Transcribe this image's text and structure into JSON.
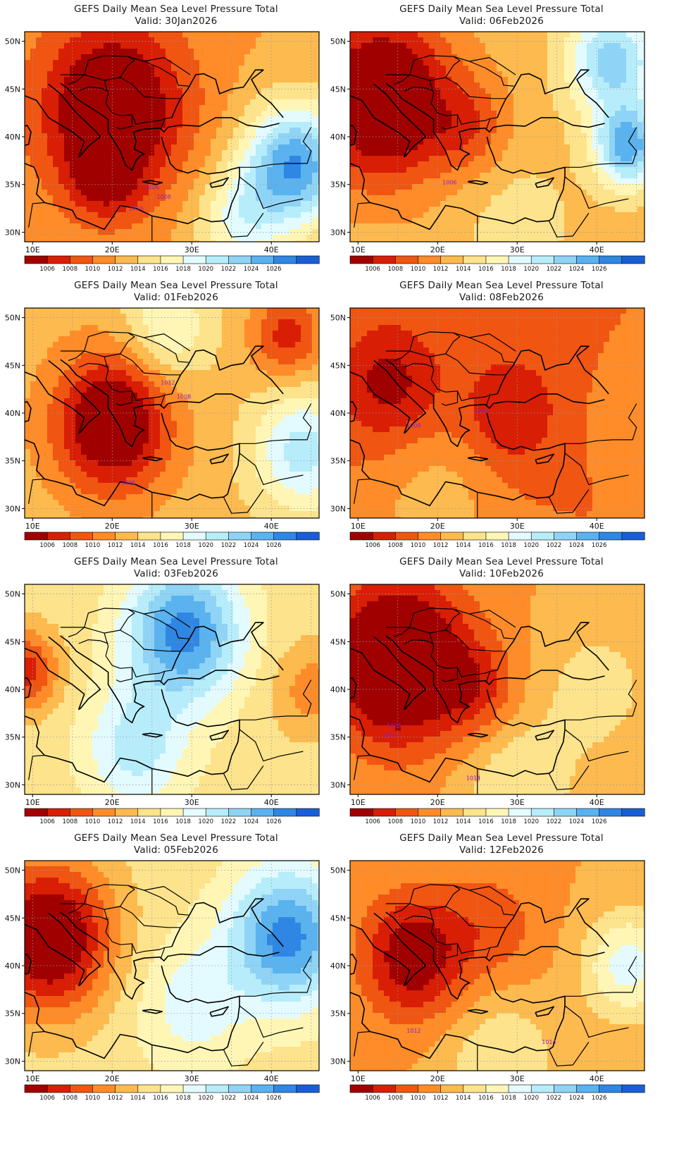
{
  "colors": {
    "levels": [
      "#a00000",
      "#d81e05",
      "#f05512",
      "#ff8c28",
      "#fdba4e",
      "#fde38c",
      "#fff6b6",
      "#e3fbff",
      "#b7edfb",
      "#8fd4f6",
      "#5ab2ef",
      "#2f86e3",
      "#1a5ed6"
    ],
    "contour": "#a22ad7",
    "coast": "#000000"
  },
  "colorbar": {
    "labels": [
      "1006",
      "1008",
      "1010",
      "1012",
      "1014",
      "1016",
      "1018",
      "1020",
      "1022",
      "1024",
      "1026"
    ]
  },
  "axes": {
    "x_ticks": [
      "10E",
      "20E",
      "30E",
      "40E"
    ],
    "x_values": [
      10,
      20,
      30,
      40
    ],
    "y_ticks": [
      "50N",
      "45N",
      "40N",
      "35N",
      "30N"
    ],
    "y_values": [
      50,
      45,
      40,
      35,
      30
    ],
    "lon_range": [
      9,
      46
    ],
    "lat_range": [
      29,
      51
    ]
  },
  "chart_data": [
    {
      "type": "heatmap",
      "title": "GEFS Daily Mean Sea Level Pressure Total",
      "valid": "Valid: 30Jan2026",
      "contour_labels": [
        {
          "text": "1006",
          "lon": 25,
          "lat": 34.5
        },
        {
          "text": "1008",
          "lon": 26.5,
          "lat": 33.5
        },
        {
          "text": "1010",
          "lon": 23,
          "lat": 32.3
        }
      ],
      "fields": [
        {
          "lon": 20,
          "lat": 43,
          "mb": -10,
          "r": 13
        },
        {
          "lon": 19,
          "lat": 36,
          "mb": -5,
          "r": 6
        },
        {
          "lon": 43,
          "lat": 37,
          "mb": 14,
          "r": 9
        },
        {
          "lon": 36,
          "lat": 31,
          "mb": 6,
          "r": 8
        }
      ],
      "base": 1012
    },
    {
      "type": "heatmap",
      "title": "GEFS Daily Mean Sea Level Pressure Total",
      "valid": "Valid: 06Feb2026",
      "contour_labels": [
        {
          "text": "1006",
          "lon": 21.5,
          "lat": 35
        }
      ],
      "fields": [
        {
          "lon": 13,
          "lat": 44,
          "mb": -12,
          "r": 12
        },
        {
          "lon": 24,
          "lat": 41,
          "mb": -4,
          "r": 7
        },
        {
          "lon": 44,
          "lat": 39,
          "mb": 12,
          "r": 6
        },
        {
          "lon": 42,
          "lat": 48,
          "mb": 10,
          "r": 8
        },
        {
          "lon": 30,
          "lat": 31,
          "mb": 2,
          "r": 10
        }
      ],
      "base": 1013
    },
    {
      "type": "heatmap",
      "title": "GEFS Daily Mean Sea Level Pressure Total",
      "valid": "Valid: 01Feb2026",
      "contour_labels": [
        {
          "text": "1012",
          "lon": 27,
          "lat": 43
        },
        {
          "text": "1008",
          "lon": 29,
          "lat": 41.5
        },
        {
          "text": "1006",
          "lon": 22,
          "lat": 32.5
        }
      ],
      "fields": [
        {
          "lon": 20,
          "lat": 39,
          "mb": -11,
          "r": 10
        },
        {
          "lon": 27,
          "lat": 49,
          "mb": 5,
          "r": 8
        },
        {
          "lon": 44,
          "lat": 36,
          "mb": 8,
          "r": 9
        },
        {
          "lon": 42,
          "lat": 48,
          "mb": -6,
          "r": 6
        }
      ],
      "base": 1013
    },
    {
      "type": "heatmap",
      "title": "GEFS Daily Mean Sea Level Pressure Total",
      "valid": "Valid: 08Feb2026",
      "contour_labels": [
        {
          "text": "1008",
          "lon": 17,
          "lat": 38.5
        },
        {
          "text": "1006",
          "lon": 25.5,
          "lat": 40
        }
      ],
      "fields": [
        {
          "lon": 14,
          "lat": 43,
          "mb": -5,
          "r": 9
        },
        {
          "lon": 29,
          "lat": 40,
          "mb": -4,
          "r": 9
        },
        {
          "lon": 20,
          "lat": 31,
          "mb": 3,
          "r": 12
        },
        {
          "lon": 44,
          "lat": 39,
          "mb": 2,
          "r": 6
        }
      ],
      "base": 1010
    },
    {
      "type": "heatmap",
      "title": "GEFS Daily Mean Sea Level Pressure Total",
      "valid": "Valid: 03Feb2026",
      "contour_labels": [],
      "fields": [
        {
          "lon": 29,
          "lat": 46,
          "mb": 12,
          "r": 10
        },
        {
          "lon": 23,
          "lat": 34,
          "mb": 6,
          "r": 9
        },
        {
          "lon": 9,
          "lat": 42,
          "mb": -8,
          "r": 6
        },
        {
          "lon": 45,
          "lat": 40,
          "mb": -4,
          "r": 7
        }
      ],
      "base": 1015
    },
    {
      "type": "heatmap",
      "title": "GEFS Daily Mean Sea Level Pressure Total",
      "valid": "Valid: 10Feb2026",
      "contour_labels": [
        {
          "text": "1008",
          "lon": 14.5,
          "lat": 36
        },
        {
          "text": "1010",
          "lon": 14,
          "lat": 35
        },
        {
          "text": "1014",
          "lon": 24.5,
          "lat": 30.5
        }
      ],
      "fields": [
        {
          "lon": 15,
          "lat": 43,
          "mb": -12,
          "r": 12
        },
        {
          "lon": 25,
          "lat": 40,
          "mb": -4,
          "r": 7
        },
        {
          "lon": 40,
          "lat": 40,
          "mb": 3,
          "r": 10
        },
        {
          "lon": 30,
          "lat": 30,
          "mb": 4,
          "r": 10
        }
      ],
      "base": 1012
    },
    {
      "type": "heatmap",
      "title": "GEFS Daily Mean Sea Level Pressure Total",
      "valid": "Valid: 05Feb2026",
      "contour_labels": [],
      "fields": [
        {
          "lon": 12,
          "lat": 43,
          "mb": -13,
          "r": 11
        },
        {
          "lon": 42,
          "lat": 43,
          "mb": 12,
          "r": 10
        },
        {
          "lon": 30,
          "lat": 36,
          "mb": 4,
          "r": 10
        }
      ],
      "base": 1015
    },
    {
      "type": "heatmap",
      "title": "GEFS Daily Mean Sea Level Pressure Total",
      "valid": "Valid: 12Feb2026",
      "contour_labels": [
        {
          "text": "1012",
          "lon": 17,
          "lat": 33
        },
        {
          "text": "1014",
          "lon": 34,
          "lat": 31.8
        }
      ],
      "fields": [
        {
          "lon": 17,
          "lat": 41,
          "mb": -8,
          "r": 9
        },
        {
          "lon": 27,
          "lat": 44,
          "mb": -3,
          "r": 9
        },
        {
          "lon": 44,
          "lat": 40,
          "mb": 7,
          "r": 8
        },
        {
          "lon": 28,
          "lat": 30,
          "mb": 4,
          "r": 10
        }
      ],
      "base": 1012
    }
  ]
}
